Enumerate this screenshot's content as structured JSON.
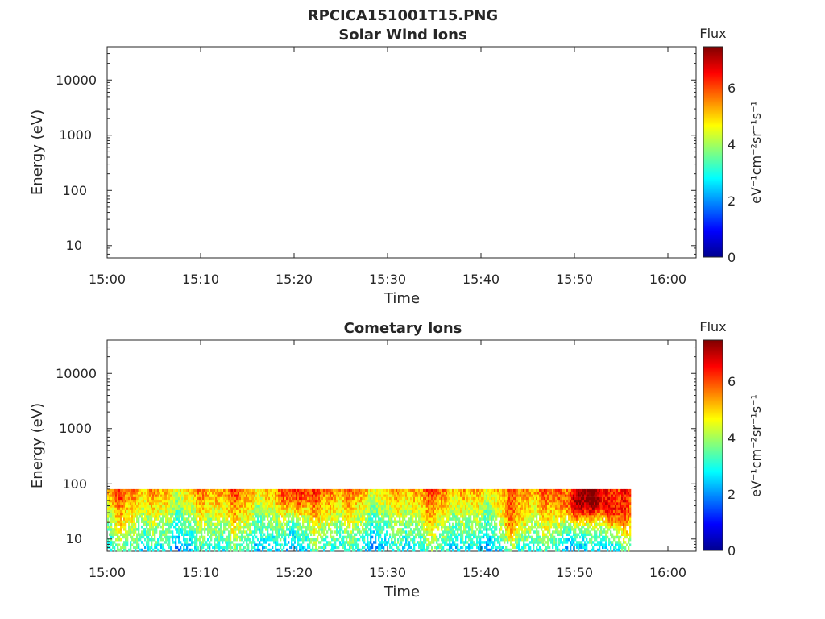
{
  "figure": {
    "title": "RPCICA151001T15.PNG"
  },
  "chart_data": [
    {
      "type": "heatmap",
      "title": "Solar Wind Ions",
      "xlabel": "Time",
      "ylabel": "Energy (eV)",
      "x_ticks": [
        "15:00",
        "15:10",
        "15:20",
        "15:30",
        "15:40",
        "15:50",
        "16:00"
      ],
      "x_range": [
        "15:00",
        "16:03"
      ],
      "y_scale": "log",
      "y_ticks": [
        "10",
        "100",
        "1000",
        "10000"
      ],
      "y_range": [
        6,
        40000
      ],
      "colorbar": {
        "label": "Flux",
        "unit": "eV⁻¹cm⁻²sr⁻¹s⁻¹",
        "range": [
          0,
          7.4
        ],
        "ticks": [
          "0",
          "2",
          "4",
          "6"
        ],
        "colormap": "jet"
      },
      "cells": []
    },
    {
      "type": "heatmap",
      "title": "Cometary Ions",
      "xlabel": "Time",
      "ylabel": "Energy (eV)",
      "x_ticks": [
        "15:00",
        "15:10",
        "15:20",
        "15:30",
        "15:40",
        "15:50",
        "16:00"
      ],
      "x_range": [
        "15:00",
        "16:03"
      ],
      "y_scale": "log",
      "y_ticks": [
        "10",
        "100",
        "1000",
        "10000"
      ],
      "y_range": [
        6,
        40000
      ],
      "colorbar": {
        "label": "Flux",
        "unit": "eV⁻¹cm⁻²sr⁻¹s⁻¹",
        "range": [
          0,
          7.4
        ],
        "ticks": [
          "0",
          "2",
          "4",
          "6"
        ],
        "colormap": "jet"
      },
      "data_extent": {
        "time": [
          "15:00",
          "15:56"
        ],
        "energy_eV": [
          6,
          80
        ]
      },
      "flux_profile_note": "flux highest (about 5-7) near top energies ~50-80 eV and strongest around 15:48-15:54; mostly 3-4 below ~30 eV",
      "hotspots": [
        {
          "time": "15:20",
          "energy_eV": 60,
          "flux": 6.0
        },
        {
          "time": "15:43",
          "energy_eV": 20,
          "flux": 5.5
        },
        {
          "time": "15:50",
          "energy_eV": 40,
          "flux": 6.8
        },
        {
          "time": "15:52",
          "energy_eV": 60,
          "flux": 6.6
        },
        {
          "time": "15:54",
          "energy_eV": 30,
          "flux": 6.2
        }
      ]
    }
  ]
}
